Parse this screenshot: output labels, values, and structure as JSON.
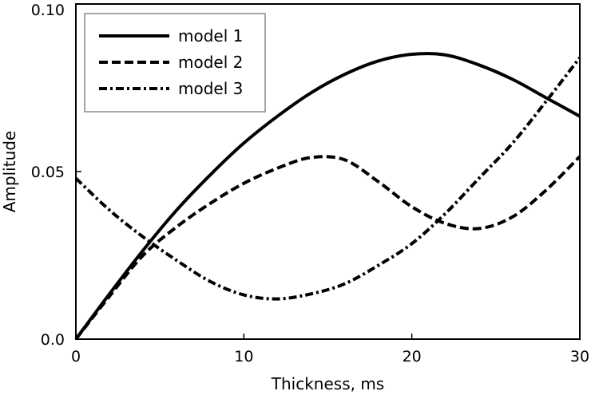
{
  "chart_data": {
    "type": "line",
    "title": "",
    "xlabel": "Thickness, ms",
    "ylabel": "Amplitude",
    "xlim": [
      0,
      30
    ],
    "ylim": [
      0,
      0.1
    ],
    "x_ticks": [
      0,
      10,
      20,
      30
    ],
    "x_tick_labels": [
      "0",
      "10",
      "20",
      "30"
    ],
    "y_ticks": [
      0,
      0.05,
      0.1
    ],
    "y_tick_labels": [
      "0.0",
      "0.05",
      "0.10"
    ],
    "grid": false,
    "legend_position": "top-left",
    "series": [
      {
        "name": "model 1",
        "style": "solid",
        "color": "#000000",
        "x": [
          0,
          2,
          4,
          6,
          8,
          10,
          12,
          14,
          16,
          18,
          20,
          22,
          24,
          26,
          28,
          30
        ],
        "y": [
          0,
          0.0135,
          0.0265,
          0.0385,
          0.049,
          0.0585,
          0.0665,
          0.0735,
          0.079,
          0.083,
          0.085,
          0.0848,
          0.0818,
          0.0775,
          0.072,
          0.0665
        ]
      },
      {
        "name": "model 2",
        "style": "dashed",
        "color": "#000000",
        "x": [
          0,
          2,
          4,
          6,
          8,
          10,
          12,
          14,
          16,
          18,
          20,
          22,
          24,
          26,
          28,
          30
        ],
        "y": [
          0,
          0.0128,
          0.025,
          0.0335,
          0.0405,
          0.0465,
          0.051,
          0.0542,
          0.0535,
          0.047,
          0.0395,
          0.0345,
          0.033,
          0.0365,
          0.0445,
          0.0545
        ]
      },
      {
        "name": "model 3",
        "style": "dashdot",
        "color": "#000000",
        "x": [
          0,
          2,
          4,
          6,
          8,
          10,
          12,
          14,
          16,
          18,
          20,
          22,
          24,
          26,
          28,
          30
        ],
        "y": [
          0.048,
          0.0385,
          0.0305,
          0.0235,
          0.0172,
          0.0132,
          0.012,
          0.0135,
          0.0165,
          0.022,
          0.0285,
          0.0375,
          0.048,
          0.0585,
          0.071,
          0.084
        ]
      }
    ]
  }
}
